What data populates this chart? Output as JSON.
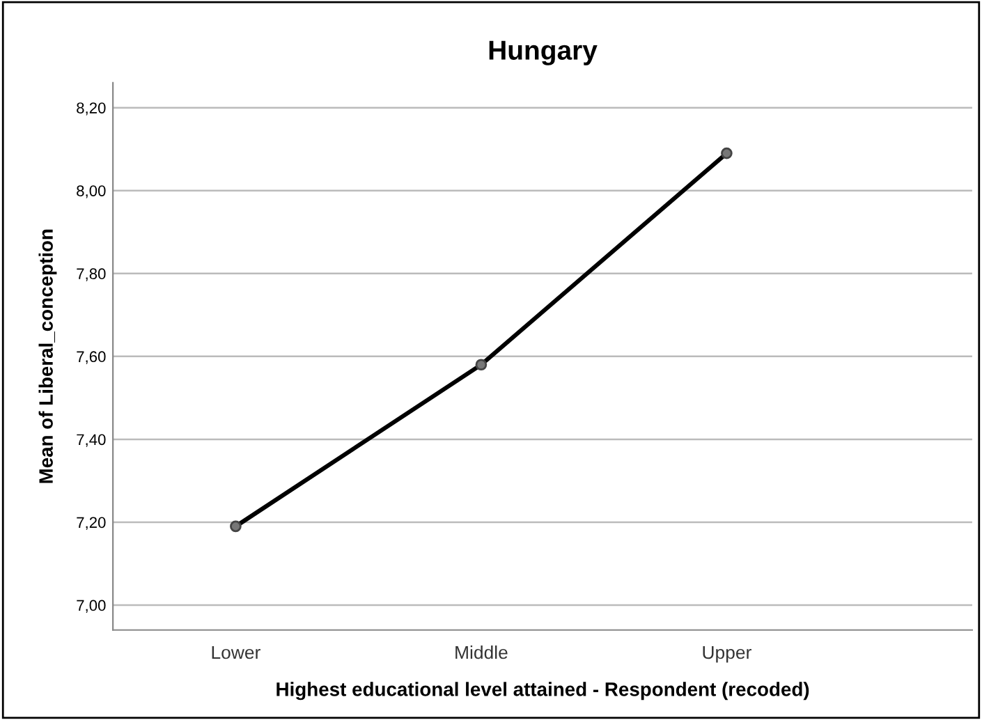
{
  "chart_data": {
    "type": "line",
    "title": "Hungary",
    "xlabel": "Highest educational level attained - Respondent (recoded)",
    "ylabel": "Mean of Liberal_conception",
    "categories": [
      "Lower",
      "Middle",
      "Upper"
    ],
    "series": [
      {
        "color": "#000000",
        "values": [
          7.19,
          7.58,
          8.09
        ]
      }
    ],
    "ylim": [
      6.94,
      8.26
    ],
    "yticks": [
      {
        "value": 7.0,
        "label": "7,00"
      },
      {
        "value": 7.2,
        "label": "7,20"
      },
      {
        "value": 7.4,
        "label": "7,40"
      },
      {
        "value": 7.6,
        "label": "7,60"
      },
      {
        "value": 7.8,
        "label": "7,80"
      },
      {
        "value": 8.0,
        "label": "8,00"
      },
      {
        "value": 8.2,
        "label": "8,20"
      }
    ],
    "grid": "y",
    "marker": "circle",
    "line_style": "solid"
  }
}
